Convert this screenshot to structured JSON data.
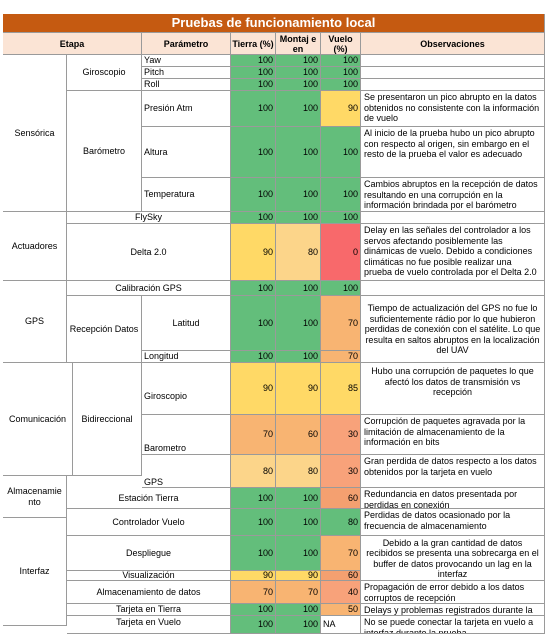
{
  "title": "Pruebas de funcionamiento local",
  "headers": {
    "etapa": "Etapa",
    "parametro": "Parámetro",
    "tierra": "Tierra (%)",
    "montaje": "Montaj e en",
    "vuelo": "Vuelo (%)",
    "observaciones": "Observaciones"
  },
  "etapas": {
    "sensorica": "Sensórica",
    "actuadores": "Actuadores",
    "gps": "GPS",
    "comunicacion": "Comunicación",
    "almacenamiento": "Almacenamie nto",
    "interfaz": "Interfaz"
  },
  "subgroups": {
    "giroscopio": "Giroscopio",
    "barometro": "Barómetro",
    "recepcion": "Recepción Datos",
    "bidireccional": "Bidireccional"
  },
  "rows": [
    {
      "param": "Yaw",
      "tierra": "100",
      "montaje": "100",
      "vuelo": "100",
      "obs": ""
    },
    {
      "param": "Pitch",
      "tierra": "100",
      "montaje": "100",
      "vuelo": "100",
      "obs": ""
    },
    {
      "param": "Roll",
      "tierra": "100",
      "montaje": "100",
      "vuelo": "100",
      "obs": ""
    },
    {
      "param": "Presión Atm",
      "tierra": "100",
      "montaje": "100",
      "vuelo": "90",
      "obs": "Se presentaron un pico abrupto en la datos obtenidos no consistente con la información de vuelo"
    },
    {
      "param": "Altura",
      "tierra": "100",
      "montaje": "100",
      "vuelo": "100",
      "obs": "Al inicio de la prueba hubo un pico abrupto con respecto al origen, sin embargo en el resto de la prueba el valor es adecuado"
    },
    {
      "param": "Temperatura",
      "tierra": "100",
      "montaje": "100",
      "vuelo": "100",
      "obs": "Cambios abruptos en la recepción de datos resultando en una corrupción en la información brindada por el barómetro"
    },
    {
      "param": "FlySky",
      "tierra": "100",
      "montaje": "100",
      "vuelo": "100",
      "obs": ""
    },
    {
      "param": "Delta 2.0",
      "tierra": "90",
      "montaje": "80",
      "vuelo": "0",
      "obs": "Delay en las señales del controlador a los servos afectando posiblemente las dinámicas de vuelo. Debido a condiciones climáticas no fue posible realizar una prueba de vuelo controlada por el Delta 2.0"
    },
    {
      "param": "Calibración GPS",
      "tierra": "100",
      "montaje": "100",
      "vuelo": "100",
      "obs": ""
    },
    {
      "param": "Latitud",
      "tierra": "100",
      "montaje": "100",
      "vuelo": "70",
      "obs": "Tiempo de actualización del GPS no fue lo suficientemente rádio por lo que hubieron perdidas de conexión con el satélite. Lo que resulta en saltos abruptos en la localización del UAV"
    },
    {
      "param": "Longitud",
      "tierra": "100",
      "montaje": "100",
      "vuelo": "70",
      "obs": ""
    },
    {
      "param": "Giroscopio",
      "tierra": "90",
      "montaje": "90",
      "vuelo": "85",
      "obs": "Hubo una corrupción de paquetes lo que afectó los datos de transmisión vs recepción"
    },
    {
      "param": "Barometro",
      "tierra": "70",
      "montaje": "60",
      "vuelo": "30",
      "obs": "Corrupción de paquetes agravada por la limitación de almacenamiento de la información en bits"
    },
    {
      "param": "GPS",
      "tierra": "80",
      "montaje": "80",
      "vuelo": "30",
      "obs": "Gran perdida de datos respecto a los datos obtenidos por la tarjeta en vuelo"
    },
    {
      "param": "Estación Tierra",
      "tierra": "100",
      "montaje": "100",
      "vuelo": "60",
      "obs": "Redundancia en datos presentada por perdidas en conexión"
    },
    {
      "param": "Controlador Vuelo",
      "tierra": "100",
      "montaje": "100",
      "vuelo": "80",
      "obs": "Perdidas de datos ocasionado por la frecuencia de almacenamiento"
    },
    {
      "param": "Despliegue",
      "tierra": "100",
      "montaje": "100",
      "vuelo": "70",
      "obs": "Debido a la gran cantidad de datos recibidos se presenta una sobrecarga en el buffer de datos provocando un lag en la interfaz"
    },
    {
      "param": "Visualización",
      "tierra": "90",
      "montaje": "90",
      "vuelo": "60",
      "obs": ""
    },
    {
      "param": "Almacenamiento de datos",
      "tierra": "70",
      "montaje": "70",
      "vuelo": "40",
      "obs": "Propagación de error debido a los datos corruptos de recepción"
    },
    {
      "param": "Tarjeta en Tierra",
      "tierra": "100",
      "montaje": "100",
      "vuelo": "50",
      "obs": "Delays y problemas registrados durante la"
    },
    {
      "param": "Tarjeta en Vuelo",
      "tierra": "100",
      "montaje": "100",
      "vuelo": "NA",
      "obs": "No se puede conectar la tarjeta en vuelo a interfaz durante la prueba"
    }
  ],
  "colors": {
    "title_bg": "#c55a11",
    "header_bg": "#fbe4d5",
    "green": "#63be7b",
    "yellow": "#ffd966",
    "orange": "#f8b472",
    "salmon": "#f4a070",
    "red": "#f8696b"
  }
}
